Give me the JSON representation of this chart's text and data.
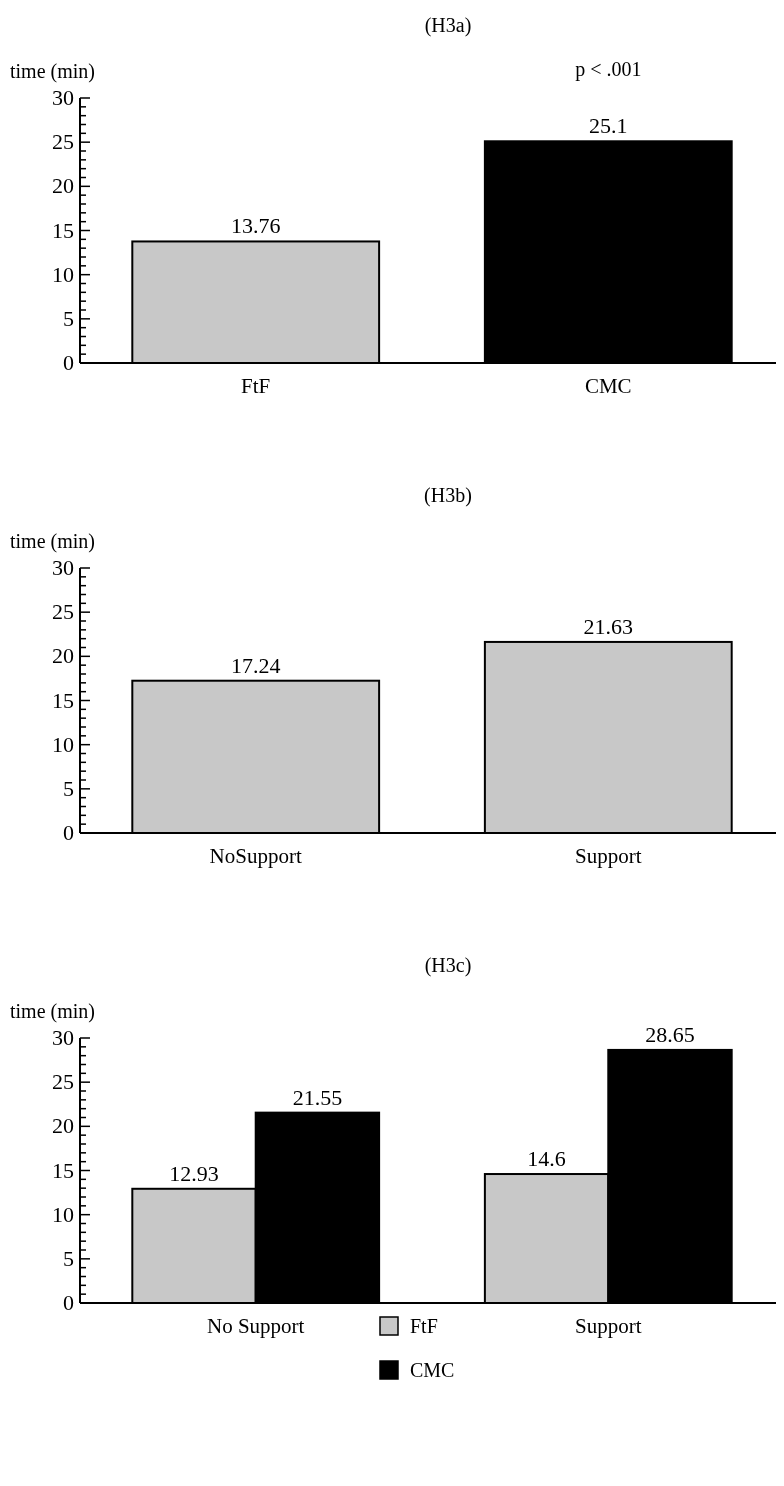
{
  "chart_data": [
    {
      "type": "bar",
      "title": "(H3a)",
      "ylabel": "time (min)",
      "categories": [
        "FtF",
        "CMC"
      ],
      "values": [
        13.76,
        25.1
      ],
      "colors": [
        "#c8c8c8",
        "#000000"
      ],
      "ylim": [
        0,
        30
      ],
      "yticks": [
        0,
        {
          "value": 1,
          "label": null
        },
        {
          "value": 2,
          "label": null
        },
        {
          "value": 3,
          "label": null
        },
        {
          "value": 4,
          "label": null
        },
        5,
        {
          "value": 6,
          "label": null
        },
        {
          "value": 7,
          "label": null
        },
        {
          "value": 8,
          "label": null
        },
        {
          "value": 9,
          "label": null
        },
        10,
        {
          "value": 11,
          "label": null
        },
        {
          "value": 12,
          "label": null
        },
        {
          "value": 13,
          "label": null
        },
        {
          "value": 14,
          "label": null
        },
        15,
        {
          "value": 16,
          "label": null
        },
        {
          "value": 17,
          "label": null
        },
        {
          "value": 18,
          "label": null
        },
        {
          "value": 19,
          "label": null
        },
        20,
        {
          "value": 21,
          "label": null
        },
        {
          "value": 22,
          "label": null
        },
        {
          "value": 23,
          "label": null
        },
        {
          "value": 24,
          "label": null
        },
        25,
        {
          "value": 26,
          "label": null
        },
        {
          "value": 27,
          "label": null
        },
        {
          "value": 28,
          "label": null
        },
        {
          "value": 29,
          "label": null
        },
        30
      ],
      "data_labels": true,
      "annotations": [
        "p < .001"
      ]
    },
    {
      "type": "bar",
      "title": "(H3b)",
      "ylabel": "time (min)",
      "categories": [
        "NoSupport",
        "Support"
      ],
      "values": [
        17.24,
        21.63
      ],
      "colors": [
        "#c8c8c8",
        "#c8c8c8"
      ],
      "ylim": [
        0,
        30
      ],
      "yticks": [
        0,
        {
          "value": 1,
          "label": null
        },
        {
          "value": 2,
          "label": null
        },
        {
          "value": 3,
          "label": null
        },
        {
          "value": 4,
          "label": null
        },
        5,
        {
          "value": 6,
          "label": null
        },
        {
          "value": 7,
          "label": null
        },
        {
          "value": 8,
          "label": null
        },
        {
          "value": 9,
          "label": null
        },
        10,
        {
          "value": 11,
          "label": null
        },
        {
          "value": 12,
          "label": null
        },
        {
          "value": 13,
          "label": null
        },
        {
          "value": 14,
          "label": null
        },
        15,
        {
          "value": 16,
          "label": null
        },
        {
          "value": 17,
          "label": null
        },
        {
          "value": 18,
          "label": null
        },
        {
          "value": 19,
          "label": null
        },
        20,
        {
          "value": 21,
          "label": null
        },
        {
          "value": 22,
          "label": null
        },
        {
          "value": 23,
          "label": null
        },
        {
          "value": 24,
          "label": null
        },
        25,
        {
          "value": 26,
          "label": null
        },
        {
          "value": 27,
          "label": null
        },
        {
          "value": 28,
          "label": null
        },
        {
          "value": 29,
          "label": null
        },
        30
      ],
      "data_labels": true
    },
    {
      "type": "bar",
      "title": "(H3c)",
      "ylabel": "time (min)",
      "categories": [
        "No Support",
        "Support"
      ],
      "series": [
        {
          "name": "FtF",
          "color": "#c8c8c8",
          "values": [
            12.93,
            14.6
          ]
        },
        {
          "name": "CMC",
          "color": "#000000",
          "values": [
            21.55,
            28.65
          ]
        }
      ],
      "ylim": [
        0,
        30
      ],
      "yticks": [
        0,
        {
          "value": 1,
          "label": null
        },
        {
          "value": 2,
          "label": null
        },
        {
          "value": 3,
          "label": null
        },
        {
          "value": 4,
          "label": null
        },
        5,
        {
          "value": 6,
          "label": null
        },
        {
          "value": 7,
          "label": null
        },
        {
          "value": 8,
          "label": null
        },
        {
          "value": 9,
          "label": null
        },
        10,
        {
          "value": 11,
          "label": null
        },
        {
          "value": 12,
          "label": null
        },
        {
          "value": 13,
          "label": null
        },
        {
          "value": 14,
          "label": null
        },
        15,
        {
          "value": 16,
          "label": null
        },
        {
          "value": 17,
          "label": null
        },
        {
          "value": 18,
          "label": null
        },
        {
          "value": 19,
          "label": null
        },
        20,
        {
          "value": 21,
          "label": null
        },
        {
          "value": 22,
          "label": null
        },
        {
          "value": 23,
          "label": null
        },
        {
          "value": 24,
          "label": null
        },
        25,
        {
          "value": 26,
          "label": null
        },
        {
          "value": 27,
          "label": null
        },
        {
          "value": 28,
          "label": null
        },
        {
          "value": 29,
          "label": null
        },
        30
      ],
      "data_labels": true,
      "legend": "bottom"
    }
  ]
}
